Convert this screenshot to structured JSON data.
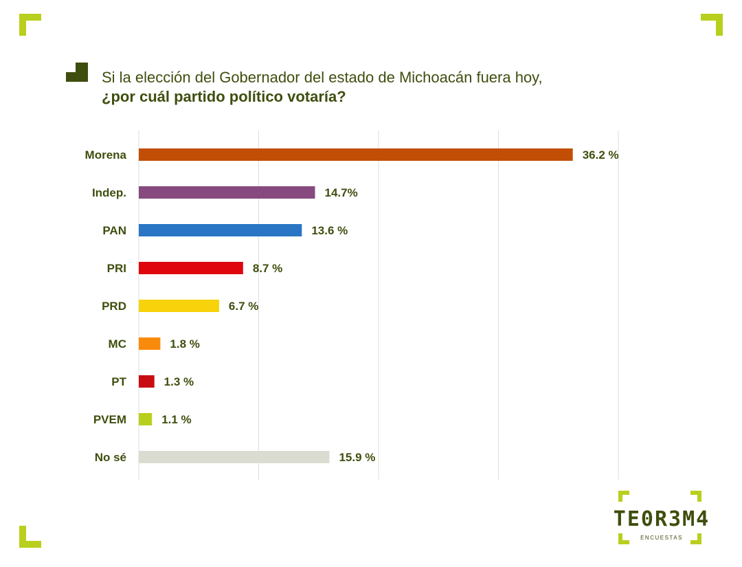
{
  "title": {
    "line1": "Si la elección del Gobernador del estado de Michoacán fuera hoy,",
    "line2": "¿por cuál partido político votaría?"
  },
  "logo": {
    "word": "TE0R3M4",
    "sub": "ENCUESTAS"
  },
  "colors": {
    "accent": "#b9cf1d",
    "text": "#3e4e0e",
    "grid": "#dddddd"
  },
  "chart_data": {
    "type": "bar",
    "orientation": "horizontal",
    "categories": [
      "Morena",
      "Indep.",
      "PAN",
      "PRI",
      "PRD",
      "MC",
      "PT",
      "PVEM",
      "No sé"
    ],
    "values": [
      36.2,
      14.7,
      13.6,
      8.7,
      6.7,
      1.8,
      1.3,
      1.1,
      15.9
    ],
    "value_labels": [
      "36.2 %",
      "14.7%",
      "13.6 %",
      "8.7 %",
      "6.7 %",
      "1.8 %",
      "1.3 %",
      "1.1 %",
      "15.9 %"
    ],
    "bar_colors": [
      "#c24e05",
      "#874a7e",
      "#2a76c4",
      "#e0060e",
      "#f8d20a",
      "#f98b0c",
      "#c80d12",
      "#b9cf1d",
      "#dbdcd1"
    ],
    "xlim": [
      0,
      40
    ],
    "grid": true,
    "axis_labels_shown": false
  }
}
